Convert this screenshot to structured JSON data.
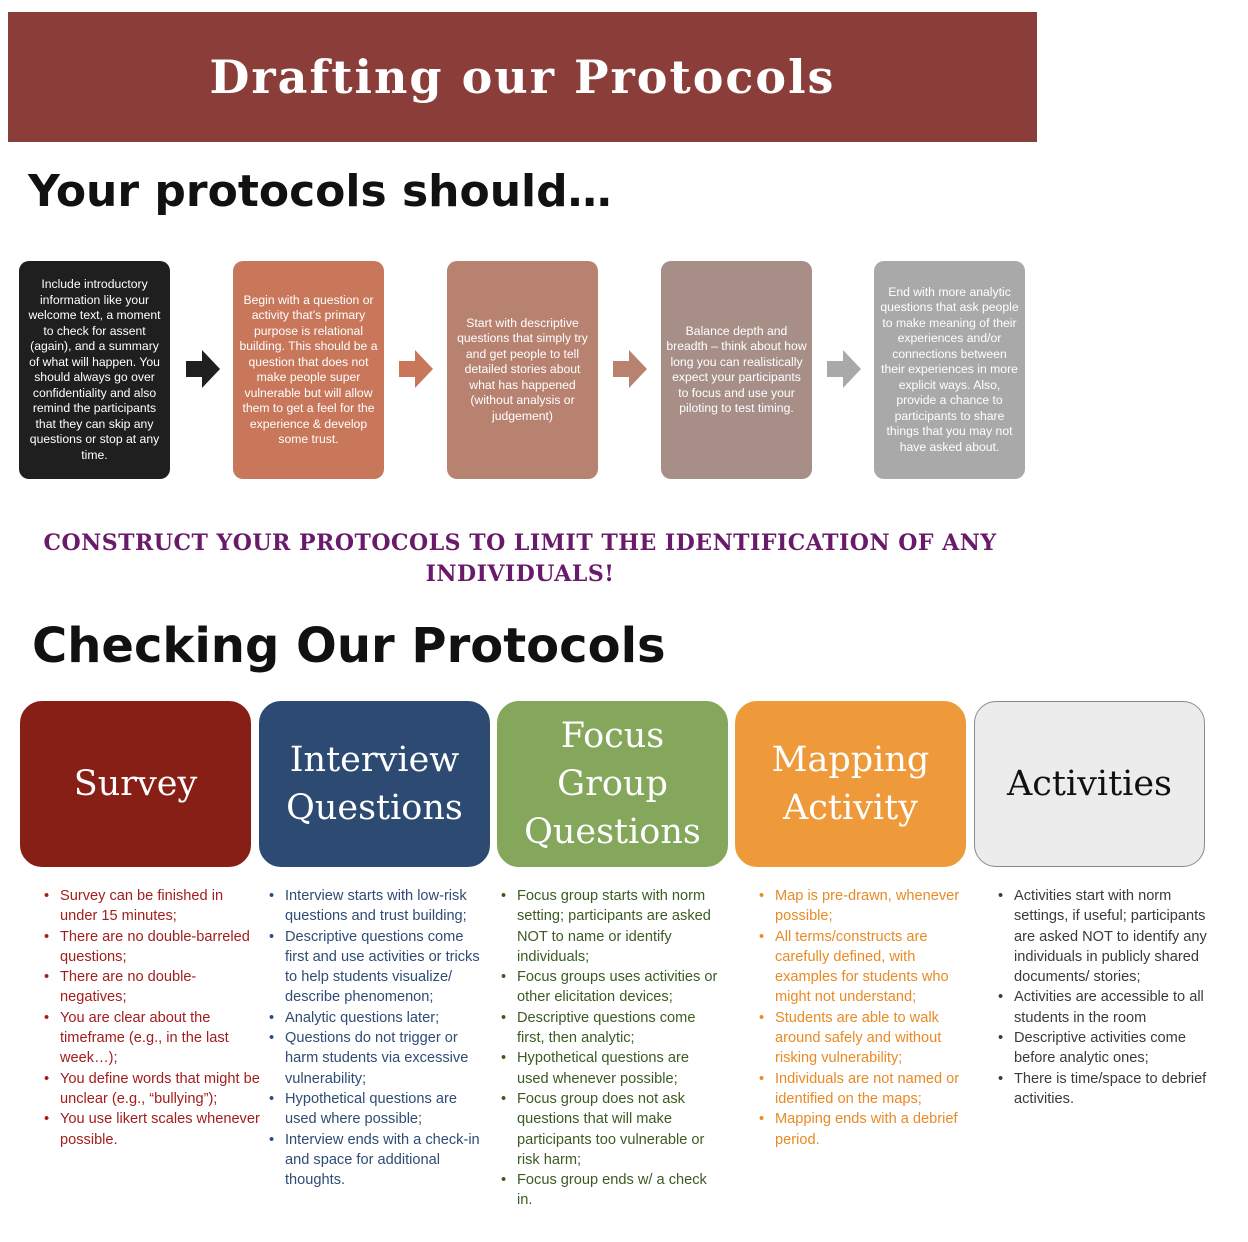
{
  "banner": {
    "title": "Drafting our Protocols",
    "color": "#8b3e39"
  },
  "section1": {
    "heading": "Your protocols should…"
  },
  "flow": [
    {
      "text": "Include introductory information like your welcome text, a moment to check for assent (again), and a summary of what will happen. You should always go over confidentiality and also remind the participants that they can skip any questions or stop at any time.",
      "color": "#1f1f1f"
    },
    {
      "text": "Begin with a question or activity that’s primary purpose is relational building. This should be a question that does not make people super vulnerable but will allow them to get a feel for the experience & develop some trust.",
      "color": "#c8775a"
    },
    {
      "text": "Start with descriptive questions that simply try and get people to tell detailed stories about what has happened (without analysis or judgement)",
      "color": "#b88271"
    },
    {
      "text": "Balance depth and breadth – think about how long you can realistically expect your participants to focus and use your piloting to test timing.",
      "color": "#a78f88"
    },
    {
      "text": "End with more analytic questions that ask people to make meaning of their experiences and/or connections between their experiences in more explicit ways. Also, provide a chance to participants to share things that you may not have asked about.",
      "color": "#a9a9a9"
    }
  ],
  "arrows": [
    {
      "icon": "right-arrow-icon",
      "color": "#1f1f1f"
    },
    {
      "icon": "right-arrow-icon",
      "color": "#c8775a"
    },
    {
      "icon": "right-arrow-icon",
      "color": "#b88271"
    },
    {
      "icon": "right-arrow-icon",
      "color": "#a9a9a9"
    }
  ],
  "warning": {
    "text": "CONSTRUCT YOUR PROTOCOLS TO LIMIT THE IDENTIFICATION OF ANY INDIVIDUALS!",
    "color": "#6a1a6a"
  },
  "section2": {
    "heading": "Checking Our Protocols"
  },
  "categories": [
    {
      "title": "Survey",
      "bg": "#871f17",
      "fg": "#ffffff",
      "text_color": "#a31d1d",
      "bullets": [
        "Survey can be finished in under 15 minutes;",
        "There are no double-barreled questions;",
        "There are no double-negatives;",
        "You are clear about the timeframe (e.g., in the last week…);",
        "You define words that might be unclear (e.g., “bullying”);",
        "You use likert scales whenever possible."
      ]
    },
    {
      "title": "Interview Questions",
      "bg": "#2d4a72",
      "fg": "#ffffff",
      "text_color": "#2e4c75",
      "bullets": [
        "Interview starts with low-risk questions and trust building;",
        "Descriptive questions come first and use activities or tricks to help students visualize/ describe phenomenon;",
        "Analytic questions later;",
        "Questions do not trigger or harm students via excessive vulnerability;",
        "Hypothetical questions are used where possible;",
        "Interview ends with a check-in and space for additional thoughts."
      ]
    },
    {
      "title": "Focus Group Questions",
      "bg": "#85a75c",
      "fg": "#ffffff",
      "text_color": "#3c5a22",
      "bullets": [
        "Focus group starts with norm setting; participants are asked NOT to name or identify individuals;",
        "Focus groups uses activities or other elicitation devices;",
        "Descriptive questions come first, then analytic;",
        "Hypothetical questions are used whenever possible;",
        "Focus group does not ask questions that will make participants too vulnerable or risk harm;",
        "Focus group ends w/ a check in."
      ]
    },
    {
      "title": "Mapping Activity",
      "bg": "#ee9a3a",
      "fg": "#ffffff",
      "text_color": "#e98a25",
      "bullets": [
        "Map is pre-drawn, whenever possible;",
        "All terms/constructs are carefully defined, with examples for students who might not understand;",
        "Students are able to walk around safely and without risking vulnerability;",
        "Individuals are not named or identified on the maps;",
        "Mapping ends with a debrief period."
      ]
    },
    {
      "title": "Activities",
      "bg": "#ececec",
      "fg": "#111111",
      "text_color": "#3a3a3a",
      "bullets": [
        "Activities start with norm settings, if useful; participants are asked NOT to identify any individuals in publicly shared documents/ stories;",
        "Activities are accessible to all students in the room",
        "Descriptive activities come before analytic ones;",
        "There is time/space to debrief activities."
      ]
    }
  ]
}
